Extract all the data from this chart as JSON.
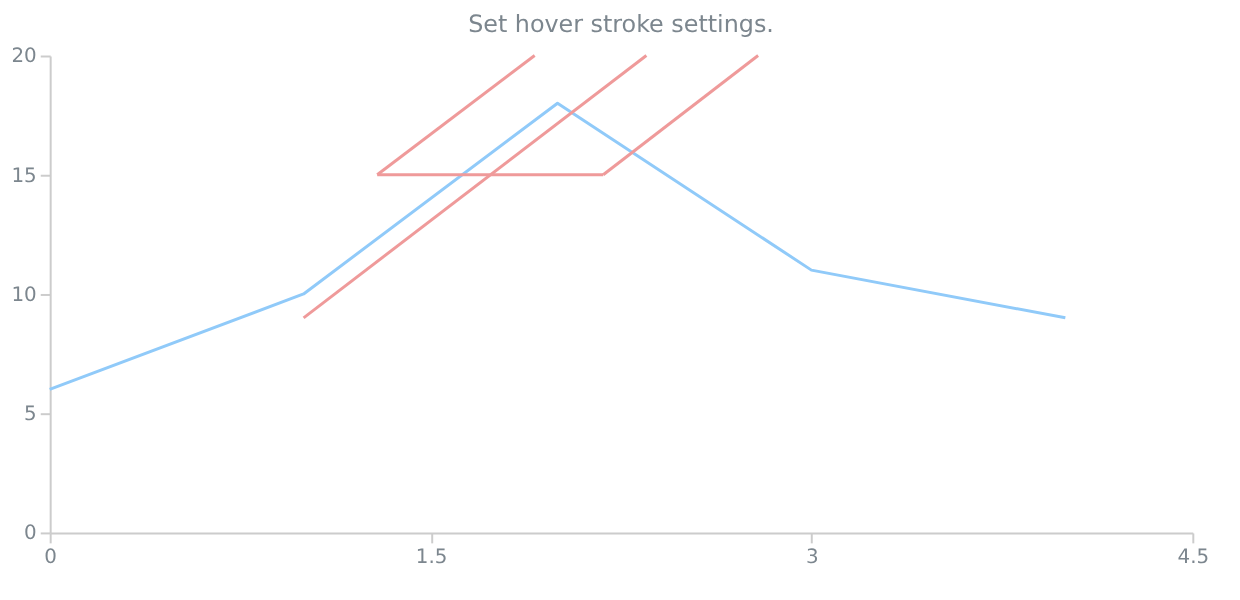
{
  "chart_data": {
    "type": "line",
    "title": "Set hover stroke settings.",
    "xlim": [
      0,
      4.5
    ],
    "xticks": [
      0,
      1.5,
      3,
      4.5
    ],
    "ylim": [
      0,
      20
    ],
    "yticks": [
      0,
      5,
      10,
      15,
      20
    ],
    "grid": false,
    "marker": "none",
    "line_style": "solid",
    "series": [
      {
        "color": "#90caf9",
        "x": [
          0,
          1,
          2,
          3,
          4
        ],
        "values": [
          6,
          10,
          18,
          11,
          9
        ]
      },
      {
        "color": "#ef9a9a",
        "x": [
          1,
          2.35
        ],
        "values": [
          9,
          20
        ]
      },
      {
        "color": "#ef9a9a",
        "x": [
          1.29,
          2.18
        ],
        "values": [
          15,
          15
        ]
      },
      {
        "color": "#ef9a9a",
        "x": [
          1.29,
          1.91
        ],
        "values": [
          15,
          20
        ]
      },
      {
        "color": "#ef9a9a",
        "x": [
          2.18,
          2.79
        ],
        "values": [
          15,
          20
        ]
      }
    ]
  }
}
